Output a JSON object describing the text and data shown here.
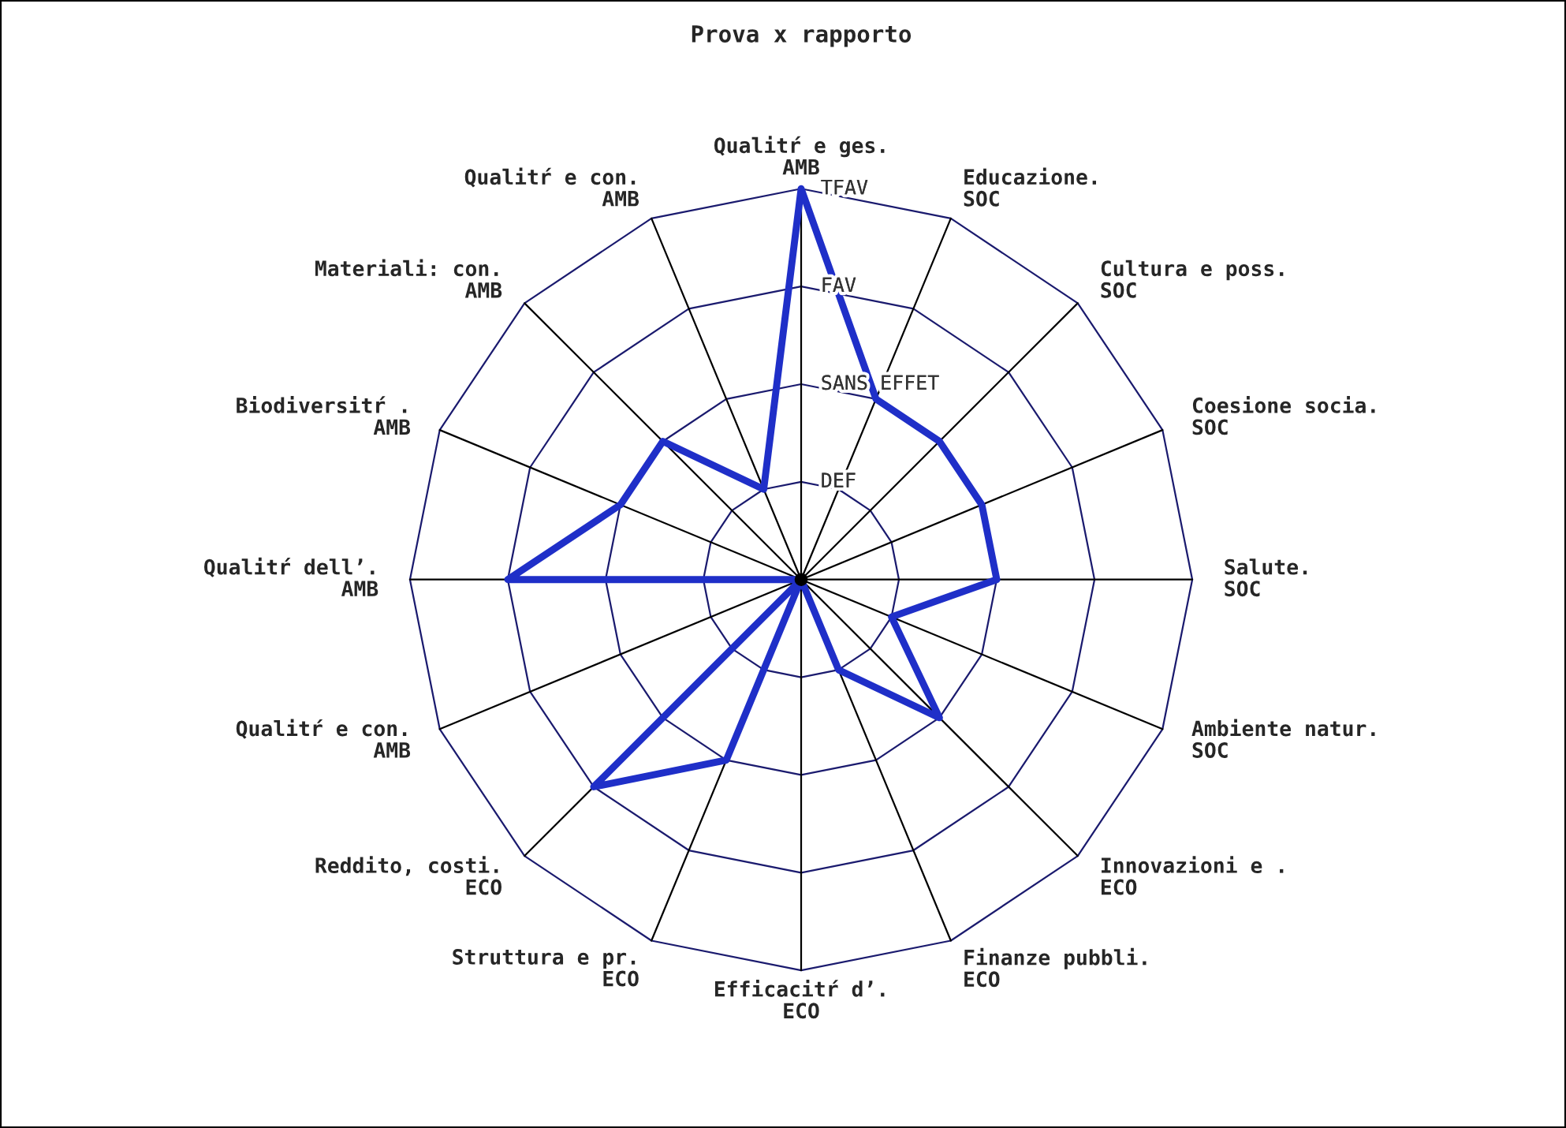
{
  "chart_data": {
    "type": "radar",
    "title": "Prova x rapporto",
    "categories": [
      "Qualitŕ e ges.\nAMB",
      "Educazione.\nSOC",
      "Cultura e poss.\nSOC",
      "Coesione socia.\nSOC",
      "Salute.\nSOC",
      "Ambiente natur.\nSOC",
      "Innovazioni e .\nECO",
      "Finanze pubbli.\nECO",
      "Efficacitŕ d’.\nECO",
      "Struttura e pr.\nECO",
      "Reddito, costi.\nECO",
      "Qualitŕ e con.\nAMB",
      "Qualitŕ dell’.\nAMB",
      "Biodiversitŕ .\nAMB",
      "Materiali: con.\nAMB",
      "Qualitŕ e con.\nAMB"
    ],
    "series": [
      {
        "color": "#1f2fc8",
        "values": [
          4,
          2,
          2,
          2,
          2,
          1,
          2,
          1,
          0,
          2,
          3,
          0,
          3,
          2,
          2,
          1
        ]
      }
    ],
    "ylim": [
      0,
      4
    ],
    "yticks": [
      {
        "value": 1,
        "label": "DEF"
      },
      {
        "value": 2,
        "label": "SANS EFFET"
      },
      {
        "value": 3,
        "label": "FAV"
      },
      {
        "value": 4,
        "label": "TFAV"
      }
    ],
    "grid": true,
    "marker": "none",
    "line_style": "solid"
  }
}
